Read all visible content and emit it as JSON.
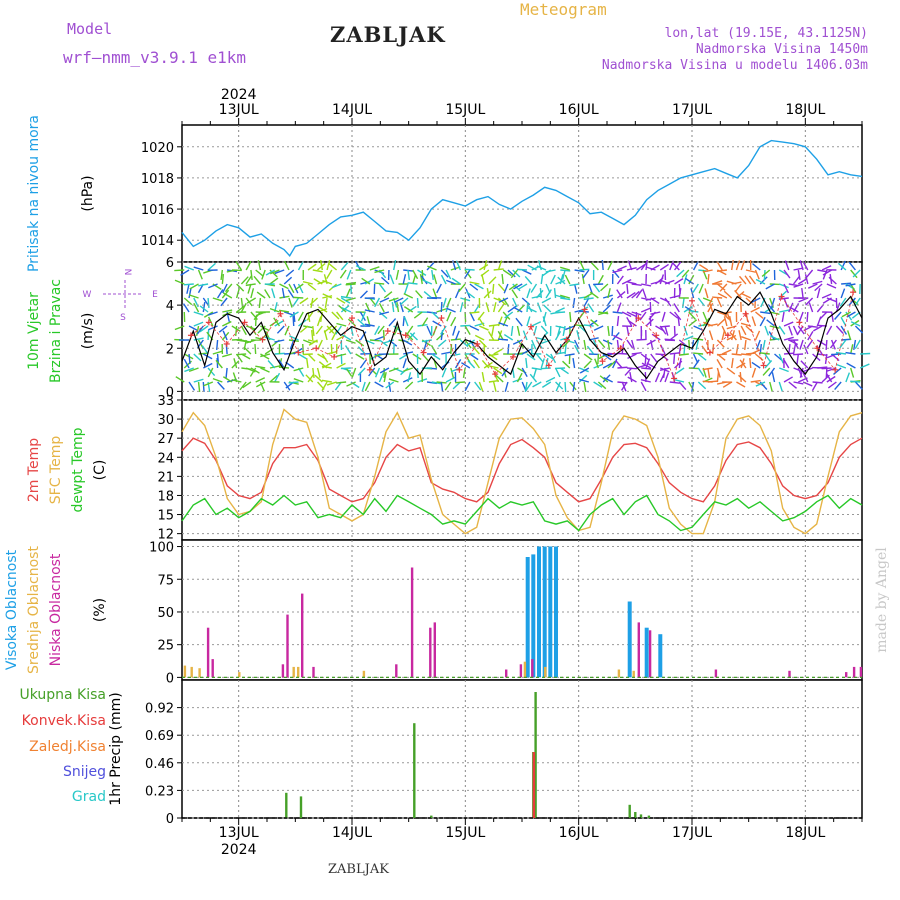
{
  "header": {
    "model_label": "Model",
    "model_name": "wrf–nmm_v3.9.1  e1km",
    "station": "ZABLJAK",
    "meteogram_label": "Meteogram",
    "coords": "lon,lat (19.15E, 43.1125N)",
    "elevation": "Nadmorska Visina 1450m",
    "model_elevation": "Nadmorska Visina u modelu 1406.03m",
    "year": "2024",
    "footer_station": "ZABLJAK",
    "watermark": "made by Angel"
  },
  "colors": {
    "pressure": "#1ea0e6",
    "temp2m": "#e64646",
    "sfc_temp": "#e6b446",
    "dewpt": "#28c828",
    "wind_speed": "#000000",
    "wind_direction": "#e63c3c",
    "cloud_high": "#1ea0e6",
    "cloud_mid": "#e6b446",
    "cloud_low": "#c828a0",
    "precip_total": "#46a028",
    "precip_conv": "#e63c3c",
    "precip_strat": "#f08232",
    "snow": "#5050dc",
    "hail": "#28c8c8"
  },
  "chart_data": [
    {
      "type": "line",
      "panel": "pressure",
      "ylabel_lines": [
        "Pritisak na nivou mora",
        "(hPa)"
      ],
      "x_ticks": [
        "13JUL",
        "14JUL",
        "15JUL",
        "16JUL",
        "17JUL",
        "18JUL"
      ],
      "x_range_days": [
        12.5,
        18.5
      ],
      "ylim": [
        1012.6,
        1021.4
      ],
      "yticks": [
        1014,
        1016,
        1018,
        1020
      ],
      "grid": true,
      "series": [
        {
          "key": "pressure",
          "x": [
            12.5,
            12.6,
            12.7,
            12.8,
            12.9,
            13.0,
            13.1,
            13.2,
            13.3,
            13.4,
            13.45,
            13.5,
            13.6,
            13.7,
            13.8,
            13.9,
            14.0,
            14.1,
            14.2,
            14.3,
            14.4,
            14.5,
            14.6,
            14.7,
            14.8,
            14.9,
            15.0,
            15.1,
            15.2,
            15.3,
            15.4,
            15.5,
            15.6,
            15.7,
            15.8,
            15.9,
            16.0,
            16.1,
            16.2,
            16.3,
            16.4,
            16.5,
            16.6,
            16.7,
            16.8,
            16.9,
            17.0,
            17.1,
            17.2,
            17.3,
            17.4,
            17.5,
            17.6,
            17.7,
            17.8,
            17.9,
            18.0,
            18.1,
            18.2,
            18.3,
            18.4,
            18.5
          ],
          "y": [
            1014.5,
            1013.6,
            1014.0,
            1014.6,
            1015.0,
            1014.8,
            1014.2,
            1014.4,
            1013.8,
            1013.4,
            1013.0,
            1013.6,
            1013.8,
            1014.4,
            1015.0,
            1015.5,
            1015.6,
            1015.8,
            1015.2,
            1014.6,
            1014.5,
            1014.0,
            1014.8,
            1016.0,
            1016.6,
            1016.4,
            1016.2,
            1016.6,
            1016.8,
            1016.3,
            1016.0,
            1016.5,
            1016.9,
            1017.4,
            1017.2,
            1016.8,
            1016.4,
            1015.7,
            1015.8,
            1015.4,
            1015.0,
            1015.6,
            1016.6,
            1017.2,
            1017.6,
            1018.0,
            1018.2,
            1018.4,
            1018.6,
            1018.3,
            1018.0,
            1018.8,
            1020.0,
            1020.4,
            1020.3,
            1020.2,
            1020.0,
            1019.2,
            1018.2,
            1018.4,
            1018.2,
            1018.1
          ]
        }
      ]
    },
    {
      "type": "line",
      "panel": "wind",
      "ylabel_lines": [
        "10m Vjetar",
        "Brzina i Pravac",
        "(m/s)"
      ],
      "compass": [
        "N",
        "W",
        "E",
        "S"
      ],
      "ylim": [
        -0.4,
        6
      ],
      "yticks": [
        0,
        2,
        4,
        6
      ],
      "grid": true,
      "series": [
        {
          "key": "wind_speed",
          "x": [
            12.5,
            12.6,
            12.7,
            12.8,
            12.9,
            13.0,
            13.1,
            13.2,
            13.3,
            13.4,
            13.5,
            13.6,
            13.7,
            13.8,
            13.9,
            14.0,
            14.1,
            14.2,
            14.3,
            14.4,
            14.5,
            14.6,
            14.7,
            14.8,
            14.9,
            15.0,
            15.1,
            15.2,
            15.3,
            15.4,
            15.5,
            15.6,
            15.7,
            15.8,
            15.9,
            16.0,
            16.1,
            16.2,
            16.3,
            16.4,
            16.5,
            16.6,
            16.7,
            16.8,
            16.9,
            17.0,
            17.1,
            17.2,
            17.3,
            17.4,
            17.5,
            17.6,
            17.7,
            17.8,
            17.9,
            18.0,
            18.1,
            18.2,
            18.3,
            18.4,
            18.5
          ],
          "y": [
            1.4,
            2.8,
            1.2,
            3.2,
            3.6,
            3.4,
            2.6,
            3.2,
            1.8,
            1.0,
            2.4,
            3.6,
            3.8,
            3.2,
            2.6,
            3.0,
            2.8,
            1.2,
            1.6,
            3.2,
            1.4,
            0.8,
            1.6,
            1.0,
            1.8,
            2.4,
            2.2,
            1.6,
            1.2,
            0.8,
            2.2,
            1.6,
            2.6,
            1.8,
            2.4,
            3.4,
            2.4,
            1.8,
            1.6,
            2.0,
            1.2,
            0.6,
            1.4,
            1.8,
            2.2,
            2.0,
            2.8,
            3.8,
            3.6,
            4.4,
            4.0,
            4.6,
            3.6,
            2.2,
            1.4,
            0.8,
            1.6,
            3.4,
            3.8,
            4.4,
            3.4
          ]
        }
      ],
      "direction_markers_y": [
        2.6,
        3.2,
        2.2,
        3.2,
        2.4,
        3.6,
        1.8,
        2.0,
        1.6,
        3.4,
        1.0,
        2.8,
        2.6,
        1.8,
        3.4,
        1.0,
        2.2,
        0.8,
        1.6,
        3.0,
        1.2,
        2.4,
        3.8,
        1.4,
        2.0,
        3.4,
        2.6,
        0.6,
        4.2,
        1.8,
        2.6,
        3.6,
        1.2,
        4.4,
        3.2,
        2.0,
        1.0,
        4.6
      ]
    },
    {
      "type": "line",
      "panel": "temperature",
      "ylabel_lines": [
        "2m Temp",
        "SFC Temp",
        "dewpt Temp",
        "(C)"
      ],
      "ylim": [
        11,
        33
      ],
      "yticks": [
        12,
        15,
        18,
        21,
        24,
        27,
        30,
        33
      ],
      "grid": true,
      "series": [
        {
          "key": "temp2m",
          "name": "2m Temp",
          "x": [
            12.5,
            12.6,
            12.7,
            12.8,
            12.9,
            13.0,
            13.1,
            13.2,
            13.3,
            13.4,
            13.5,
            13.6,
            13.7,
            13.8,
            13.9,
            14.0,
            14.1,
            14.2,
            14.3,
            14.4,
            14.5,
            14.6,
            14.7,
            14.8,
            14.9,
            15.0,
            15.1,
            15.2,
            15.3,
            15.4,
            15.5,
            15.6,
            15.7,
            15.8,
            15.9,
            16.0,
            16.1,
            16.2,
            16.3,
            16.4,
            16.5,
            16.6,
            16.7,
            16.8,
            16.9,
            17.0,
            17.1,
            17.2,
            17.3,
            17.4,
            17.5,
            17.6,
            17.7,
            17.8,
            17.9,
            18.0,
            18.1,
            18.2,
            18.3,
            18.4,
            18.5
          ],
          "y": [
            25.0,
            27.0,
            26.2,
            23.5,
            19.5,
            18.0,
            17.5,
            18.5,
            23.0,
            25.5,
            25.5,
            26.0,
            23.5,
            19.0,
            18.0,
            17.0,
            17.5,
            20.0,
            24.0,
            26.0,
            25.0,
            25.5,
            20.0,
            19.0,
            18.5,
            17.5,
            17.0,
            18.5,
            23.0,
            26.0,
            26.8,
            25.5,
            24.0,
            20.0,
            18.5,
            17.0,
            17.5,
            20.5,
            24.0,
            26.0,
            26.2,
            25.5,
            23.0,
            20.0,
            18.5,
            17.5,
            17.0,
            19.5,
            23.5,
            26.0,
            26.4,
            25.5,
            23.0,
            19.5,
            18.0,
            17.5,
            18.0,
            20.0,
            24.0,
            26.0,
            27.0
          ]
        },
        {
          "key": "sfc_temp",
          "name": "SFC Temp",
          "x": [
            12.5,
            12.6,
            12.7,
            12.8,
            12.9,
            13.0,
            13.1,
            13.2,
            13.3,
            13.4,
            13.5,
            13.6,
            13.7,
            13.8,
            13.9,
            14.0,
            14.1,
            14.2,
            14.3,
            14.4,
            14.5,
            14.6,
            14.7,
            14.8,
            14.9,
            15.0,
            15.1,
            15.2,
            15.3,
            15.4,
            15.5,
            15.6,
            15.7,
            15.8,
            15.9,
            16.0,
            16.1,
            16.2,
            16.3,
            16.4,
            16.5,
            16.6,
            16.7,
            16.8,
            16.9,
            17.0,
            17.1,
            17.2,
            17.3,
            17.4,
            17.5,
            17.6,
            17.7,
            17.8,
            17.9,
            18.0,
            18.1,
            18.2,
            18.3,
            18.4,
            18.5
          ],
          "y": [
            28.0,
            31.0,
            29.0,
            24.0,
            17.5,
            15.0,
            15.5,
            17.0,
            26.0,
            31.5,
            30.0,
            29.5,
            24.0,
            16.0,
            15.0,
            14.0,
            15.0,
            21.0,
            28.0,
            31.0,
            27.0,
            27.5,
            20.5,
            15.0,
            13.5,
            12.0,
            13.0,
            20.0,
            27.0,
            30.0,
            30.2,
            28.5,
            26.0,
            18.0,
            14.5,
            12.5,
            13.0,
            20.0,
            28.0,
            30.5,
            30.0,
            29.0,
            24.0,
            16.0,
            13.5,
            12.0,
            12.0,
            17.0,
            27.0,
            30.0,
            30.5,
            29.0,
            25.0,
            16.0,
            13.0,
            12.0,
            13.5,
            21.0,
            28.0,
            30.5,
            31.0
          ]
        },
        {
          "key": "dewpt",
          "name": "dewpt Temp",
          "x": [
            12.5,
            12.6,
            12.7,
            12.8,
            12.9,
            13.0,
            13.1,
            13.2,
            13.3,
            13.4,
            13.5,
            13.6,
            13.7,
            13.8,
            13.9,
            14.0,
            14.1,
            14.2,
            14.3,
            14.4,
            14.5,
            14.6,
            14.7,
            14.8,
            14.9,
            15.0,
            15.1,
            15.2,
            15.3,
            15.4,
            15.5,
            15.6,
            15.7,
            15.8,
            15.9,
            16.0,
            16.1,
            16.2,
            16.3,
            16.4,
            16.5,
            16.6,
            16.7,
            16.8,
            16.9,
            17.0,
            17.1,
            17.2,
            17.3,
            17.4,
            17.5,
            17.6,
            17.7,
            17.8,
            17.9,
            18.0,
            18.1,
            18.2,
            18.3,
            18.4,
            18.5
          ],
          "y": [
            14.0,
            16.5,
            17.5,
            15.0,
            16.0,
            14.5,
            15.5,
            17.5,
            16.5,
            18.0,
            16.5,
            17.0,
            14.5,
            15.0,
            14.5,
            16.5,
            15.0,
            17.5,
            15.5,
            18.0,
            17.0,
            16.0,
            15.0,
            13.5,
            14.0,
            13.5,
            15.5,
            17.5,
            16.0,
            17.0,
            16.5,
            17.0,
            14.0,
            13.5,
            14.0,
            12.5,
            15.0,
            16.5,
            17.5,
            15.0,
            17.0,
            18.0,
            15.0,
            14.0,
            12.5,
            13.0,
            15.0,
            17.0,
            16.5,
            17.5,
            16.0,
            17.0,
            15.5,
            14.0,
            14.5,
            15.5,
            17.0,
            18.0,
            16.0,
            17.5,
            16.5
          ]
        }
      ]
    },
    {
      "type": "bar",
      "panel": "cloud",
      "ylabel_lines": [
        "Visoka Oblacnost",
        "Srednja Oblacnost",
        "Niska Oblacnost",
        "(%)"
      ],
      "ylim": [
        -2,
        105
      ],
      "yticks": [
        0,
        25,
        50,
        75,
        100
      ],
      "grid": true,
      "series": [
        {
          "key": "cloud_high",
          "name": "Visoka Oblacnost",
          "x": [
            15.55,
            15.6,
            15.65,
            15.7,
            15.75,
            15.8,
            16.45,
            16.6,
            16.72
          ],
          "values": [
            92,
            94,
            100,
            100,
            100,
            100,
            58,
            38,
            33
          ]
        },
        {
          "key": "cloud_mid",
          "name": "Srednja Oblacnost",
          "x": [
            12.52,
            12.58,
            12.65,
            13.0,
            13.48,
            13.52,
            14.1,
            15.52,
            15.7,
            16.35,
            16.48
          ],
          "values": [
            9,
            8,
            7,
            4,
            8,
            8,
            5,
            12,
            8,
            6,
            5
          ]
        },
        {
          "key": "cloud_low",
          "name": "Niska Oblacnost",
          "x": [
            12.72,
            12.76,
            13.38,
            13.42,
            13.55,
            13.65,
            14.38,
            14.52,
            14.68,
            14.72,
            15.35,
            15.48,
            15.58,
            16.52,
            16.62,
            17.2,
            17.85,
            18.35,
            18.42,
            18.48
          ],
          "values": [
            38,
            14,
            10,
            48,
            64,
            8,
            10,
            84,
            38,
            42,
            6,
            10,
            14,
            42,
            36,
            6,
            5,
            4,
            8,
            8
          ]
        }
      ]
    },
    {
      "type": "bar",
      "panel": "precip",
      "ylabel_lines": [
        "1hr Precip (mm)"
      ],
      "legend_labels": [
        "Ukupna Kisa",
        "Konvek.Kisa",
        "Zaledj.Kisa",
        "Snijeg",
        "Grad"
      ],
      "ylim": [
        0,
        1.15
      ],
      "yticks": [
        0,
        0.23,
        0.46,
        0.69,
        0.92
      ],
      "grid": true,
      "series": [
        {
          "key": "precip_total",
          "name": "Ukupna Kisa",
          "x": [
            13.42,
            13.55,
            14.55,
            14.7,
            15.6,
            15.62,
            16.45,
            16.5,
            16.55,
            16.62
          ],
          "values": [
            0.21,
            0.18,
            0.79,
            0.02,
            0.55,
            1.05,
            0.11,
            0.05,
            0.03,
            0.02
          ]
        },
        {
          "key": "precip_conv",
          "name": "Konvek.Kisa",
          "x": [
            15.6
          ],
          "values": [
            0.55
          ]
        }
      ]
    }
  ]
}
